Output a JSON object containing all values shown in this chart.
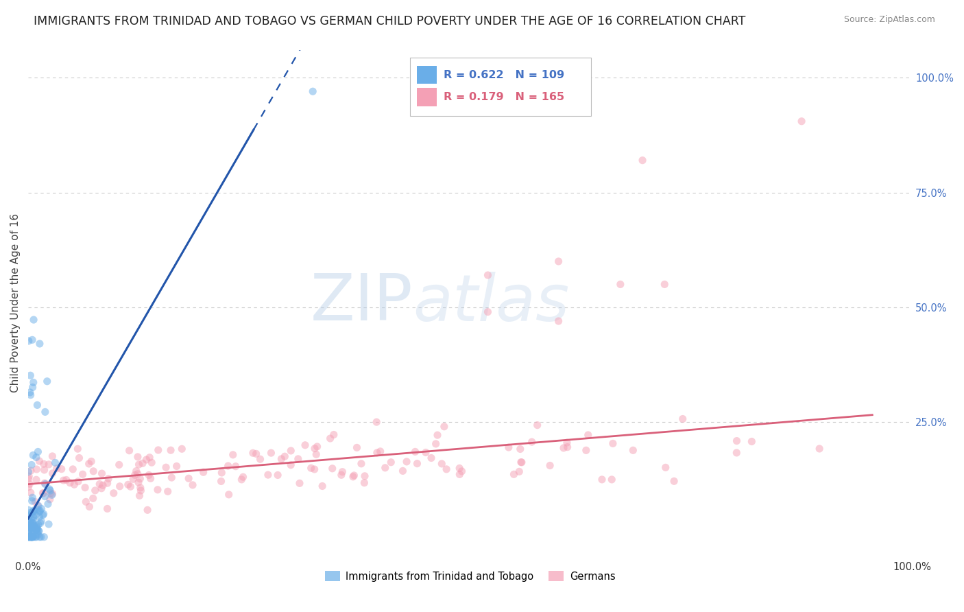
{
  "title": "IMMIGRANTS FROM TRINIDAD AND TOBAGO VS GERMAN CHILD POVERTY UNDER THE AGE OF 16 CORRELATION CHART",
  "source": "Source: ZipAtlas.com",
  "ylabel": "Child Poverty Under the Age of 16",
  "blue_R": 0.622,
  "blue_N": 109,
  "pink_R": 0.179,
  "pink_N": 165,
  "blue_color": "#6aaee8",
  "pink_color": "#f4a0b5",
  "blue_line_color": "#2255aa",
  "pink_line_color": "#d9607a",
  "watermark_zip": "ZIP",
  "watermark_atlas": "atlas",
  "legend_blue_label": "Immigrants from Trinidad and Tobago",
  "legend_pink_label": "Germans",
  "background_color": "#ffffff",
  "grid_color": "#cccccc",
  "title_fontsize": 12.5,
  "axis_label_fontsize": 11,
  "tick_fontsize": 10.5,
  "right_tick_color": "#4472c4"
}
